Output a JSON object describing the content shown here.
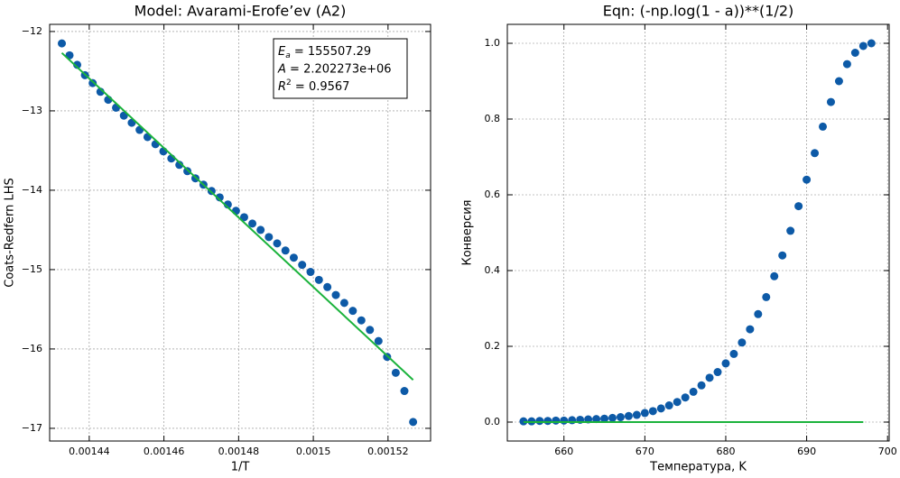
{
  "chart_data": [
    {
      "type": "scatter",
      "title": "Model: Avarami-Erofe’ev (A2)",
      "xlabel": "1/T",
      "ylabel": "Coats-Redfern LHS",
      "xlim": [
        0.0014294,
        0.0015314
      ],
      "ylim": [
        -17.16,
        -11.91
      ],
      "xticks": [
        0.00144,
        0.00146,
        0.00148,
        0.0015,
        0.00152
      ],
      "yticks": [
        {
          "value": -17,
          "label": "−17"
        },
        {
          "value": -16,
          "label": "−16"
        },
        {
          "value": -15,
          "label": "−15"
        },
        {
          "value": -14,
          "label": "−14"
        },
        {
          "value": -13,
          "label": "−13"
        },
        {
          "value": -12,
          "label": "−12"
        }
      ],
      "grid": true,
      "annotations": [
        {
          "var": "E",
          "sub": "a",
          "text": " = 155507.29"
        },
        {
          "var": "A",
          "text": " = 2.202273e+06"
        },
        {
          "var": "R",
          "sup": "2",
          "text": " = 0.9567"
        }
      ],
      "series": [
        {
          "type": "scatter",
          "color": "#0d5aa7",
          "x": [
            0.001432665,
            0.00143472,
            0.001436782,
            0.001438849,
            0.001440922,
            0.001443001,
            0.001445087,
            0.001447178,
            0.001449275,
            0.001451379,
            0.001453488,
            0.001455604,
            0.001457726,
            0.001459854,
            0.001461988,
            0.001464129,
            0.001466276,
            0.001468429,
            0.001470588,
            0.001472754,
            0.001474926,
            0.001477105,
            0.00147929,
            0.001481481,
            0.00148368,
            0.001485884,
            0.001488095,
            0.001490313,
            0.001492537,
            0.001494768,
            0.001497006,
            0.00149925,
            0.001501502,
            0.001503759,
            0.001506024,
            0.001508296,
            0.001510574,
            0.001512859,
            0.001515152,
            0.001517451,
            0.001519757,
            0.00152207,
            0.00152439,
            0.001526718
          ],
          "values": [
            -12.15,
            -12.3,
            -12.42,
            -12.55,
            -12.65,
            -12.76,
            -12.86,
            -12.96,
            -13.06,
            -13.15,
            -13.24,
            -13.33,
            -13.42,
            -13.51,
            -13.6,
            -13.68,
            -13.76,
            -13.85,
            -13.93,
            -14.01,
            -14.09,
            -14.18,
            -14.26,
            -14.34,
            -14.42,
            -14.5,
            -14.59,
            -14.67,
            -14.76,
            -14.85,
            -14.94,
            -15.03,
            -15.13,
            -15.22,
            -15.32,
            -15.42,
            -15.52,
            -15.64,
            -15.76,
            -15.9,
            -16.1,
            -16.3,
            -16.53,
            -16.92
          ]
        },
        {
          "type": "line",
          "color": "#1bb33c",
          "x": [
            0.001432665,
            0.001526718
          ],
          "values": [
            -12.27,
            -16.39
          ]
        }
      ]
    },
    {
      "type": "scatter",
      "title": "Eqn: (-np.log(1 - a))**(1/2)",
      "xlabel": "Температура, K",
      "ylabel": "Конверсия",
      "xlim": [
        653,
        700.2
      ],
      "ylim": [
        -0.05,
        1.05
      ],
      "xticks": [
        660,
        670,
        680,
        690,
        700
      ],
      "yticks": [
        {
          "value": 0,
          "label": "0.0"
        },
        {
          "value": 0.2,
          "label": "0.2"
        },
        {
          "value": 0.4,
          "label": "0.4"
        },
        {
          "value": 0.6,
          "label": "0.6"
        },
        {
          "value": 0.8,
          "label": "0.8"
        },
        {
          "value": 1,
          "label": "1.0"
        }
      ],
      "grid": true,
      "series": [
        {
          "type": "scatter",
          "color": "#0d5aa7",
          "x": [
            655,
            656,
            657,
            658,
            659,
            660,
            661,
            662,
            663,
            664,
            665,
            666,
            667,
            668,
            669,
            670,
            671,
            672,
            673,
            674,
            675,
            676,
            677,
            678,
            679,
            680,
            681,
            682,
            683,
            684,
            685,
            686,
            687,
            688,
            689,
            690,
            691,
            692,
            693,
            694,
            695,
            696,
            697,
            698
          ],
          "values": [
            0.002,
            0.002,
            0.003,
            0.003,
            0.004,
            0.004,
            0.005,
            0.006,
            0.007,
            0.008,
            0.009,
            0.011,
            0.013,
            0.016,
            0.019,
            0.024,
            0.029,
            0.036,
            0.044,
            0.053,
            0.065,
            0.08,
            0.097,
            0.117,
            0.132,
            0.155,
            0.18,
            0.21,
            0.245,
            0.285,
            0.33,
            0.385,
            0.44,
            0.505,
            0.57,
            0.64,
            0.71,
            0.78,
            0.845,
            0.9,
            0.945,
            0.975,
            0.993,
            1.0
          ]
        },
        {
          "type": "line",
          "color": "#1bb33c",
          "x": [
            655,
            697
          ],
          "values": [
            0.0,
            0.0
          ]
        }
      ]
    }
  ]
}
